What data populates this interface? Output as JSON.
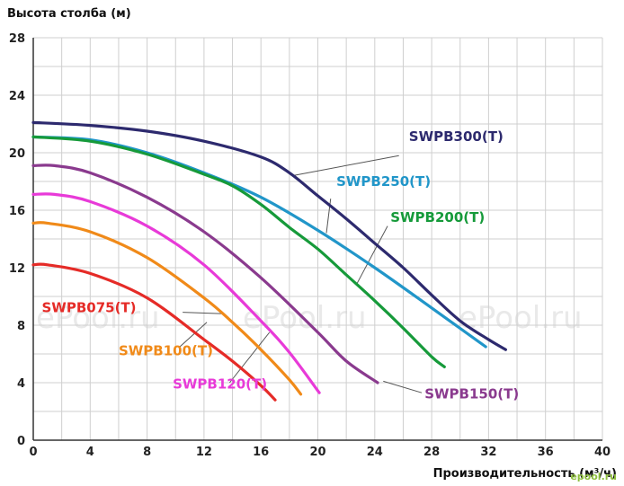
{
  "chart_data": {
    "type": "line",
    "ylabel": "Высота столба (м)",
    "xlabel": "Производительность (м³/ч)",
    "xlim": [
      0,
      40
    ],
    "ylim": [
      0,
      28
    ],
    "xticks": [
      0,
      4,
      8,
      12,
      16,
      20,
      24,
      28,
      32,
      36,
      40
    ],
    "yticks": [
      0,
      4,
      8,
      12,
      16,
      20,
      24,
      28
    ],
    "grid": true,
    "watermark": [
      "ePool.ru",
      "ePool.ru",
      "ePool.ru"
    ],
    "corner_mark": "epool.ru",
    "series": [
      {
        "name": "SWPB300(T)",
        "color": "#2d2a6e",
        "x": [
          0,
          4,
          8,
          12,
          16,
          18,
          20,
          22,
          24,
          26,
          28,
          30,
          32,
          33.2
        ],
        "y": [
          22.1,
          21.9,
          21.5,
          20.8,
          19.7,
          18.6,
          17.0,
          15.4,
          13.7,
          12.0,
          10.1,
          8.3,
          7.0,
          6.3
        ],
        "label_at": [
          26.4,
          20.8
        ]
      },
      {
        "name": "SWPB250(T)",
        "color": "#2196c9",
        "x": [
          0,
          4,
          8,
          12,
          16,
          20,
          24,
          28,
          31.8
        ],
        "y": [
          21.1,
          20.9,
          20.0,
          18.6,
          16.9,
          14.6,
          12.0,
          9.2,
          6.5
        ],
        "label_at": [
          21.3,
          17.7
        ]
      },
      {
        "name": "SWPB200(T)",
        "color": "#169a3a",
        "x": [
          0,
          4,
          8,
          12,
          14,
          16,
          18,
          20,
          22,
          24,
          26,
          28,
          28.9
        ],
        "y": [
          21.1,
          20.8,
          19.9,
          18.5,
          17.7,
          16.4,
          14.8,
          13.3,
          11.5,
          9.7,
          7.8,
          5.8,
          5.1
        ],
        "label_at": [
          25.1,
          15.2
        ]
      },
      {
        "name": "SWPB150(T)",
        "color": "#8a3a8e",
        "x": [
          0,
          1.5,
          4,
          8,
          12,
          16,
          20,
          22,
          24.2
        ],
        "y": [
          19.1,
          19.1,
          18.6,
          16.9,
          14.5,
          11.3,
          7.5,
          5.5,
          4.0
        ],
        "label_at": [
          27.5,
          2.9
        ]
      },
      {
        "name": "SWPB120(T)",
        "color": "#e83ad8",
        "x": [
          0,
          1.5,
          4,
          8,
          12,
          16,
          18,
          20.1
        ],
        "y": [
          17.1,
          17.1,
          16.6,
          14.9,
          12.2,
          8.3,
          6.1,
          3.3
        ],
        "label_at": [
          9.8,
          3.6
        ]
      },
      {
        "name": "SWPB100(T)",
        "color": "#f08a19",
        "x": [
          0,
          1,
          4,
          8,
          12,
          14,
          16,
          18,
          18.8
        ],
        "y": [
          15.1,
          15.1,
          14.5,
          12.7,
          9.9,
          8.2,
          6.3,
          4.2,
          3.2
        ],
        "label_at": [
          6.0,
          5.9
        ]
      },
      {
        "name": "SWPB075(T)",
        "color": "#e52b27",
        "x": [
          0,
          1,
          4,
          8,
          12,
          14,
          16,
          17
        ],
        "y": [
          12.2,
          12.2,
          11.6,
          9.9,
          7.0,
          5.5,
          3.8,
          2.8
        ],
        "label_at": [
          0.6,
          8.9
        ]
      }
    ]
  }
}
